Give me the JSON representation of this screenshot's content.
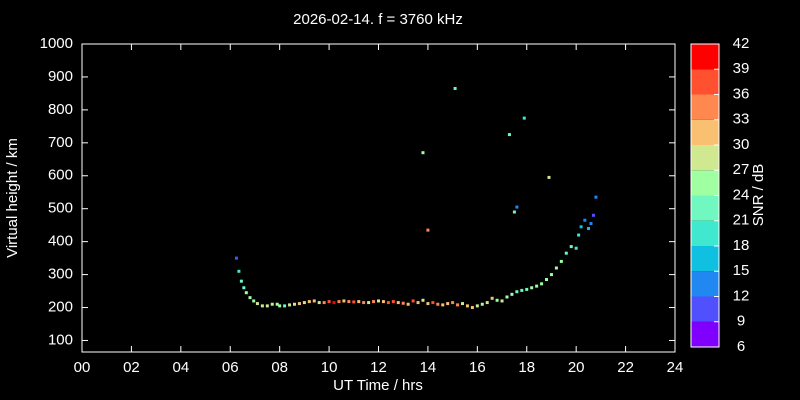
{
  "chart_data": {
    "type": "scatter",
    "title": "2026-02-14. f = 3760 kHz",
    "xlabel": "UT Time / hrs",
    "ylabel": "Virtual height / km",
    "x": [
      6.25,
      6.35,
      6.45,
      6.55,
      6.65,
      6.8,
      6.95,
      7.1,
      7.3,
      7.5,
      7.7,
      7.9,
      8.0,
      8.2,
      8.4,
      8.6,
      8.8,
      9.0,
      9.2,
      9.4,
      9.6,
      9.8,
      10.0,
      10.2,
      10.4,
      10.6,
      10.8,
      11.0,
      11.2,
      11.4,
      11.6,
      11.8,
      12.0,
      12.2,
      12.4,
      12.6,
      12.8,
      13.0,
      13.2,
      13.4,
      13.6,
      13.8,
      14.0,
      14.2,
      14.4,
      14.6,
      14.8,
      15.0,
      15.2,
      15.4,
      15.6,
      15.8,
      16.0,
      16.2,
      16.4,
      16.6,
      16.8,
      17.0,
      17.2,
      17.4,
      17.6,
      17.8,
      18.0,
      18.2,
      18.4,
      18.6,
      18.8,
      19.0,
      19.2,
      19.4,
      19.6,
      19.8,
      20.0,
      20.1,
      20.2,
      20.35,
      20.5,
      20.6,
      20.7,
      20.8,
      13.8,
      14.0,
      15.1,
      17.3,
      17.9,
      18.9,
      17.5,
      17.6
    ],
    "values": [
      350,
      310,
      280,
      260,
      245,
      230,
      220,
      212,
      205,
      205,
      210,
      210,
      205,
      205,
      208,
      210,
      212,
      215,
      218,
      220,
      215,
      215,
      218,
      215,
      218,
      220,
      218,
      217,
      218,
      215,
      215,
      218,
      220,
      218,
      215,
      218,
      215,
      213,
      210,
      220,
      215,
      222,
      212,
      215,
      210,
      208,
      212,
      215,
      208,
      212,
      205,
      200,
      205,
      210,
      215,
      228,
      222,
      220,
      232,
      240,
      248,
      252,
      255,
      260,
      265,
      272,
      285,
      300,
      320,
      340,
      365,
      385,
      380,
      420,
      445,
      465,
      440,
      455,
      480,
      535,
      670,
      435,
      865,
      725,
      775,
      595,
      490,
      505
    ],
    "snr": [
      10,
      20,
      21,
      22,
      24,
      25,
      26,
      28,
      29,
      28,
      27,
      26,
      25,
      21,
      27,
      28,
      30,
      29,
      31,
      30,
      28,
      33,
      36,
      39,
      33,
      30,
      34,
      36,
      31,
      35,
      28,
      33,
      27,
      32,
      36,
      37,
      30,
      34,
      31,
      37,
      32,
      29,
      31,
      36,
      33,
      31,
      30,
      33,
      35,
      29,
      31,
      30,
      27,
      25,
      28,
      30,
      25,
      27,
      24,
      24,
      23,
      22,
      22,
      24,
      26,
      25,
      24,
      25,
      25,
      24,
      21,
      21,
      20,
      18,
      16,
      14,
      15,
      13,
      11,
      12,
      24,
      34,
      22,
      21,
      20,
      28,
      22,
      14
    ],
    "xlim": [
      0,
      24
    ],
    "xticks": [
      {
        "value": 0,
        "label": "00"
      },
      {
        "value": 2,
        "label": "02"
      },
      {
        "value": 4,
        "label": "04"
      },
      {
        "value": 6,
        "label": "06"
      },
      {
        "value": 8,
        "label": "08"
      },
      {
        "value": 10,
        "label": "10"
      },
      {
        "value": 12,
        "label": "12"
      },
      {
        "value": 14,
        "label": "14"
      },
      {
        "value": 16,
        "label": "16"
      },
      {
        "value": 18,
        "label": "18"
      },
      {
        "value": 20,
        "label": "20"
      },
      {
        "value": 22,
        "label": "22"
      },
      {
        "value": 24,
        "label": "24"
      }
    ],
    "ylim": [
      65,
      1000
    ],
    "yticks": [
      100,
      200,
      300,
      400,
      500,
      600,
      700,
      800,
      900,
      1000
    ],
    "colorbar": {
      "label": "SNR / dB",
      "ticks": [
        6,
        9,
        12,
        15,
        18,
        21,
        24,
        27,
        30,
        33,
        36,
        39,
        42
      ],
      "colors": [
        "#8000ff",
        "#5050ff",
        "#2088f0",
        "#10c0e0",
        "#40e8d0",
        "#70f8c0",
        "#a0ffa0",
        "#d0e890",
        "#f8c070",
        "#ff8850",
        "#ff5030",
        "#ff0000"
      ]
    }
  }
}
